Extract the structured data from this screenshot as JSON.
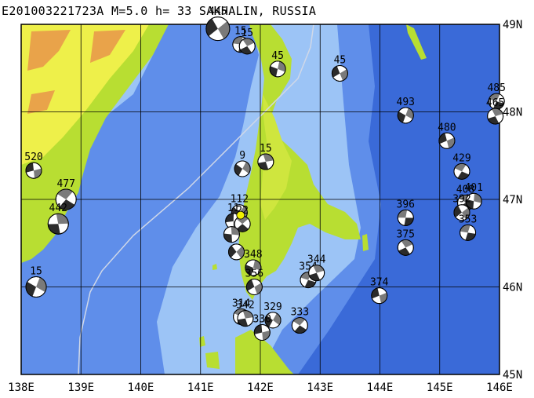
{
  "title": "E201003221723A M=5.0 h= 33 SAKHALIN, RUSSIA",
  "map": {
    "lon_range": [
      138,
      146
    ],
    "lat_range": [
      45,
      49
    ],
    "x_ticks": [
      "138E",
      "139E",
      "140E",
      "141E",
      "142E",
      "143E",
      "144E",
      "145E",
      "146E"
    ],
    "y_ticks": [
      "49N",
      "48N",
      "47N",
      "46N",
      "45N"
    ],
    "grid": true
  },
  "colors": {
    "deep_sea": "#3a6ad8",
    "mid_sea": "#5f8eea",
    "shelf_sea": "#9cc4f6",
    "lowland": "#b8de32",
    "land_mid": "#cfe63e",
    "highland": "#eef04a",
    "mountain": "#e9a34a",
    "beachball_fill": "#000000",
    "highlight_event": "#f0f000"
  },
  "events": [
    {
      "label": "445",
      "lon": 141.29,
      "lat": 48.95
    },
    {
      "label": "15",
      "lon": 141.67,
      "lat": 48.77
    },
    {
      "label": "15",
      "lon": 141.78,
      "lat": 48.75
    },
    {
      "label": "45",
      "lon": 142.29,
      "lat": 48.49
    },
    {
      "label": "45",
      "lon": 143.33,
      "lat": 48.44
    },
    {
      "label": "485",
      "lon": 145.95,
      "lat": 48.12
    },
    {
      "label": "465",
      "lon": 145.93,
      "lat": 47.95
    },
    {
      "label": "493",
      "lon": 144.43,
      "lat": 47.96
    },
    {
      "label": "480",
      "lon": 145.12,
      "lat": 47.67
    },
    {
      "label": "429",
      "lon": 145.37,
      "lat": 47.32
    },
    {
      "label": "15",
      "lon": 142.09,
      "lat": 47.43
    },
    {
      "label": "9",
      "lon": 141.7,
      "lat": 47.35
    },
    {
      "label": "520",
      "lon": 138.21,
      "lat": 47.33
    },
    {
      "label": "477",
      "lon": 138.75,
      "lat": 47.0
    },
    {
      "label": "442",
      "lon": 138.62,
      "lat": 46.72
    },
    {
      "label": "112",
      "lon": 141.65,
      "lat": 46.85
    },
    {
      "label": "11",
      "lon": 141.55,
      "lat": 46.75
    },
    {
      "label": "22",
      "lon": 141.7,
      "lat": 46.72
    },
    {
      "label": "",
      "lon": 141.52,
      "lat": 46.6
    },
    {
      "label": "",
      "lon": 141.6,
      "lat": 46.4
    },
    {
      "label": "396",
      "lon": 144.43,
      "lat": 46.79
    },
    {
      "label": "408",
      "lon": 145.43,
      "lat": 46.96
    },
    {
      "label": "401",
      "lon": 145.57,
      "lat": 46.98
    },
    {
      "label": "392",
      "lon": 145.37,
      "lat": 46.85
    },
    {
      "label": "353",
      "lon": 145.47,
      "lat": 46.62
    },
    {
      "label": "375",
      "lon": 144.43,
      "lat": 46.45
    },
    {
      "label": "348",
      "lon": 141.88,
      "lat": 46.22
    },
    {
      "label": "356",
      "lon": 141.9,
      "lat": 46.0
    },
    {
      "label": "354",
      "lon": 142.8,
      "lat": 46.08
    },
    {
      "label": "344",
      "lon": 142.94,
      "lat": 46.16
    },
    {
      "label": "15",
      "lon": 138.25,
      "lat": 46.0
    },
    {
      "label": "374",
      "lon": 143.99,
      "lat": 45.9
    },
    {
      "label": "314",
      "lon": 141.68,
      "lat": 45.66
    },
    {
      "label": "342",
      "lon": 141.75,
      "lat": 45.64
    },
    {
      "label": "329",
      "lon": 142.21,
      "lat": 45.62
    },
    {
      "label": "330",
      "lon": 142.03,
      "lat": 45.48
    },
    {
      "label": "333",
      "lon": 142.66,
      "lat": 45.56
    }
  ],
  "highlight": {
    "lon": 141.67,
    "lat": 46.82
  }
}
